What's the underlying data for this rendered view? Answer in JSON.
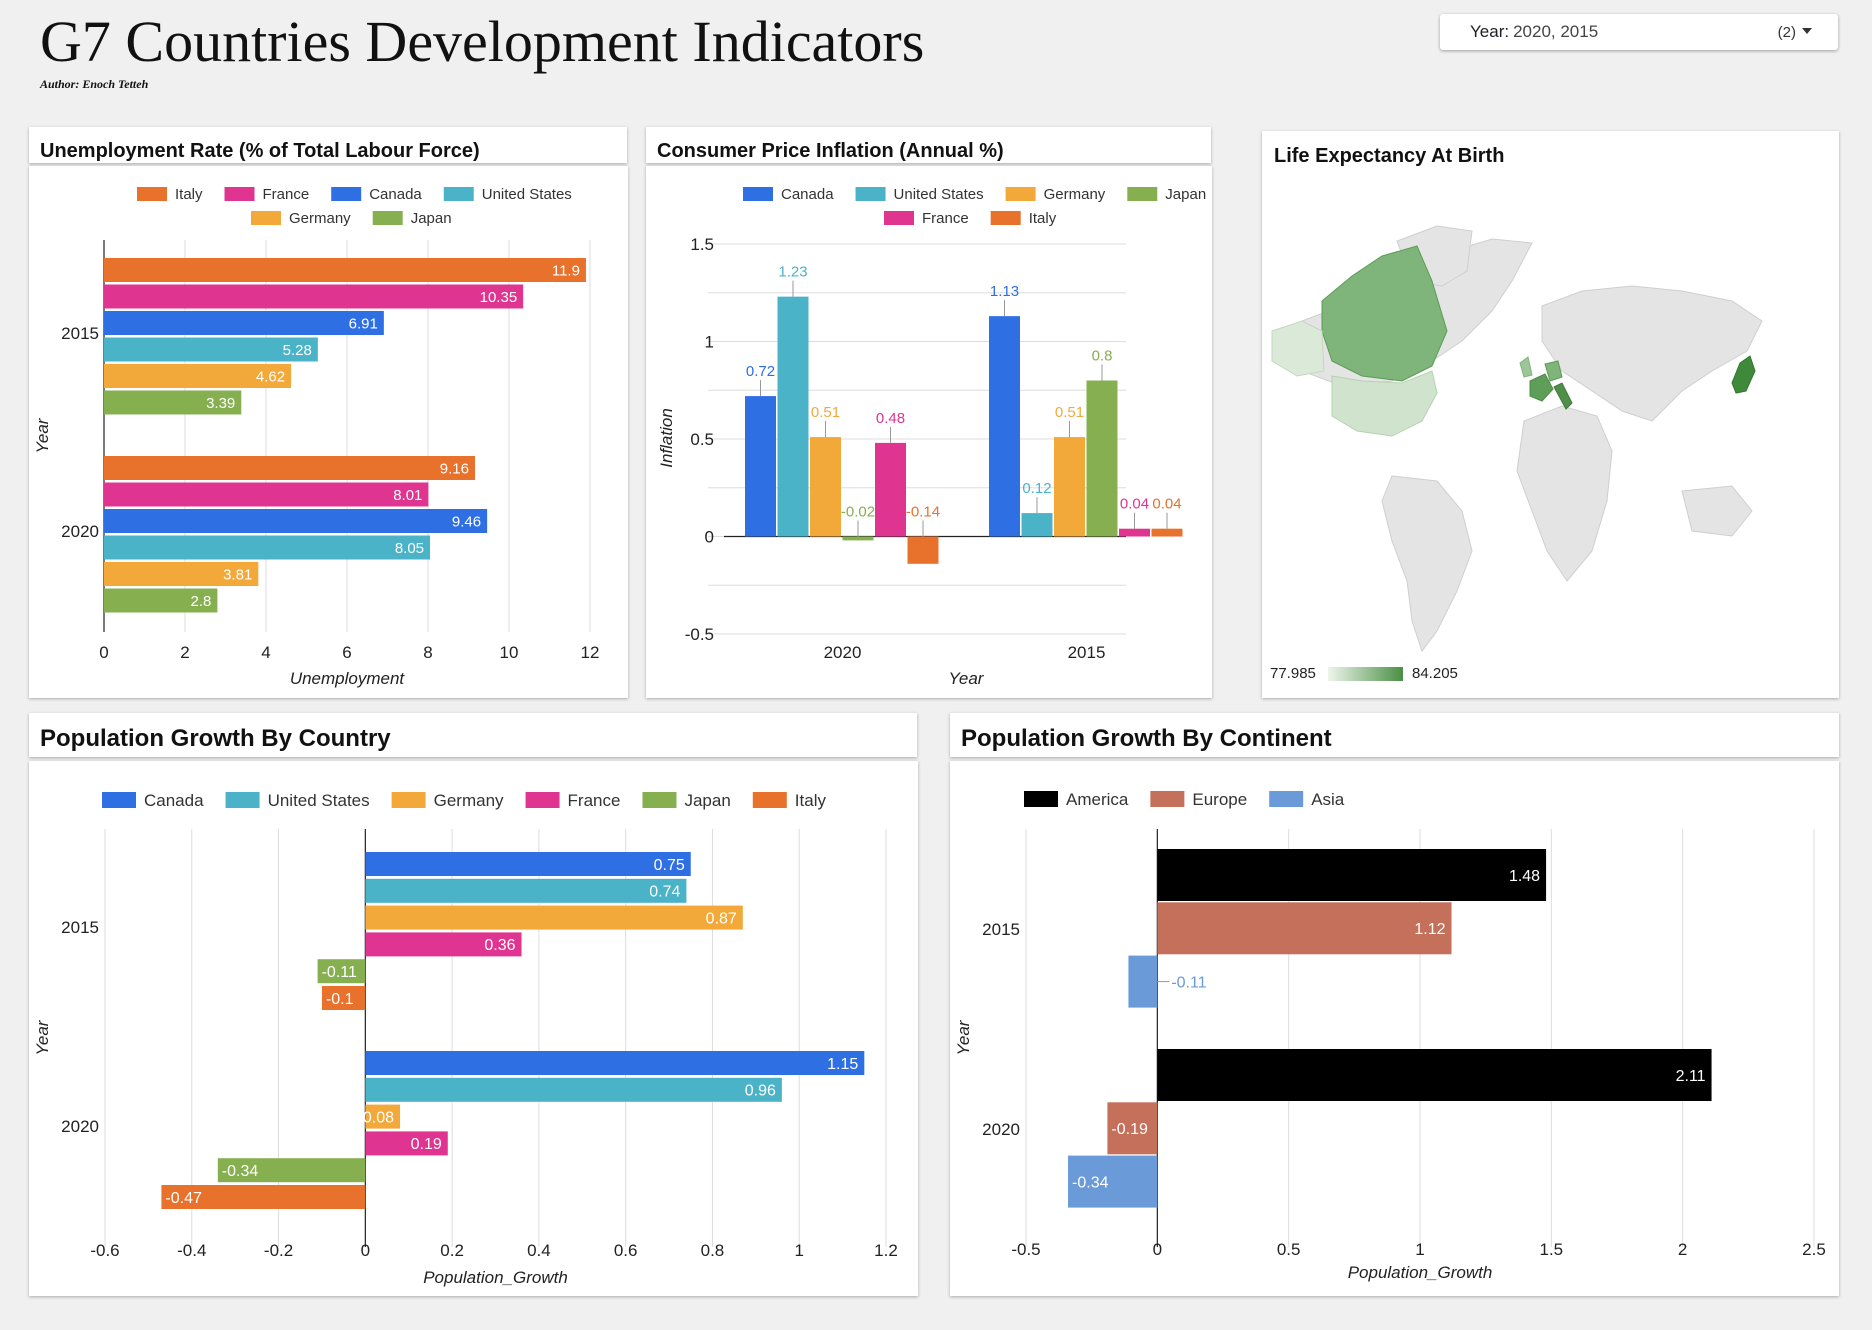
{
  "header": {
    "title": "G7 Countries Development Indicators",
    "author": "Author: Enoch Tetteh"
  },
  "filter": {
    "label": "Year:",
    "value": "2020, 2015",
    "count": "(2)"
  },
  "colors": {
    "Canada": "#2f6fe4",
    "United States": "#4bb3c8",
    "Germany": "#f3a93a",
    "Japan": "#86b04f",
    "France": "#df3590",
    "Italy": "#e8712c",
    "America": "#000000",
    "Europe": "#c4705b",
    "Asia": "#6a9bd8"
  },
  "chart_data": [
    {
      "id": "unemployment",
      "type": "bar",
      "orientation": "horizontal",
      "title": "Unemployment  Rate (% of Total Labour Force)",
      "xlabel": "Unemployment",
      "ylabel": "Year",
      "categories": [
        "2015",
        "2020"
      ],
      "legend": [
        "Italy",
        "France",
        "Canada",
        "United States",
        "Germany",
        "Japan"
      ],
      "series": [
        {
          "name": "Italy",
          "values": [
            11.9,
            9.16
          ]
        },
        {
          "name": "France",
          "values": [
            10.35,
            8.01
          ]
        },
        {
          "name": "Canada",
          "values": [
            6.91,
            9.46
          ]
        },
        {
          "name": "United States",
          "values": [
            5.28,
            8.05
          ]
        },
        {
          "name": "Germany",
          "values": [
            4.62,
            3.81
          ]
        },
        {
          "name": "Japan",
          "values": [
            3.39,
            2.8
          ]
        }
      ],
      "xlim": [
        0,
        12
      ],
      "xticks": [
        0,
        2,
        4,
        6,
        8,
        10,
        12
      ],
      "grid": true,
      "legend_position": "top"
    },
    {
      "id": "inflation",
      "type": "bar",
      "orientation": "vertical",
      "title": "Consumer Price Inflation  (Annual %)",
      "xlabel": "Year",
      "ylabel": "Inflation",
      "categories": [
        "2020",
        "2015"
      ],
      "legend": [
        "Canada",
        "United States",
        "Germany",
        "Japan",
        "France",
        "Italy"
      ],
      "series": [
        {
          "name": "Canada",
          "values": [
            0.72,
            1.13
          ]
        },
        {
          "name": "United States",
          "values": [
            1.23,
            0.12
          ]
        },
        {
          "name": "Germany",
          "values": [
            0.51,
            0.51
          ]
        },
        {
          "name": "Japan",
          "values": [
            -0.02,
            0.8
          ]
        },
        {
          "name": "France",
          "values": [
            0.48,
            0.04
          ]
        },
        {
          "name": "Italy",
          "values": [
            -0.14,
            0.04
          ]
        }
      ],
      "ylim": [
        -0.5,
        1.5
      ],
      "yticks": [
        -0.5,
        0,
        0.5,
        1,
        1.5
      ],
      "grid": true,
      "legend_position": "top"
    },
    {
      "id": "lifeexp",
      "type": "map",
      "title": "Life Expectancy At Birth",
      "color_scale": {
        "min": 77.985,
        "max": 84.205,
        "min_label": "77.985",
        "max_label": "84.205"
      }
    },
    {
      "id": "popcountry",
      "type": "bar",
      "orientation": "horizontal",
      "title": "Population Growth By Country",
      "xlabel": "Population_Growth",
      "ylabel": "Year",
      "categories": [
        "2015",
        "2020"
      ],
      "legend": [
        "Canada",
        "United States",
        "Germany",
        "France",
        "Japan",
        "Italy"
      ],
      "series": [
        {
          "name": "Canada",
          "values": [
            0.75,
            1.15
          ]
        },
        {
          "name": "United States",
          "values": [
            0.74,
            0.96
          ]
        },
        {
          "name": "Germany",
          "values": [
            0.87,
            0.08
          ]
        },
        {
          "name": "France",
          "values": [
            0.36,
            0.19
          ]
        },
        {
          "name": "Japan",
          "values": [
            -0.11,
            -0.34
          ]
        },
        {
          "name": "Italy",
          "values": [
            -0.1,
            -0.47
          ]
        }
      ],
      "xlim": [
        -0.6,
        1.2
      ],
      "xticks": [
        -0.6,
        -0.4,
        -0.2,
        0,
        0.2,
        0.4,
        0.6,
        0.8,
        1,
        1.2
      ],
      "grid": true,
      "legend_position": "top"
    },
    {
      "id": "popcontinent",
      "type": "bar",
      "orientation": "horizontal",
      "title": "Population Growth By Continent",
      "xlabel": "Population_Growth",
      "ylabel": "Year",
      "categories": [
        "2015",
        "2020"
      ],
      "legend": [
        "America",
        "Europe",
        "Asia"
      ],
      "series": [
        {
          "name": "America",
          "values": [
            1.48,
            2.11
          ]
        },
        {
          "name": "Europe",
          "values": [
            1.12,
            -0.19
          ]
        },
        {
          "name": "Asia",
          "values": [
            -0.11,
            -0.34
          ]
        }
      ],
      "xlim": [
        -0.5,
        2.5
      ],
      "xticks": [
        -0.5,
        0,
        0.5,
        1,
        1.5,
        2,
        2.5
      ],
      "grid": true,
      "legend_position": "top"
    }
  ]
}
